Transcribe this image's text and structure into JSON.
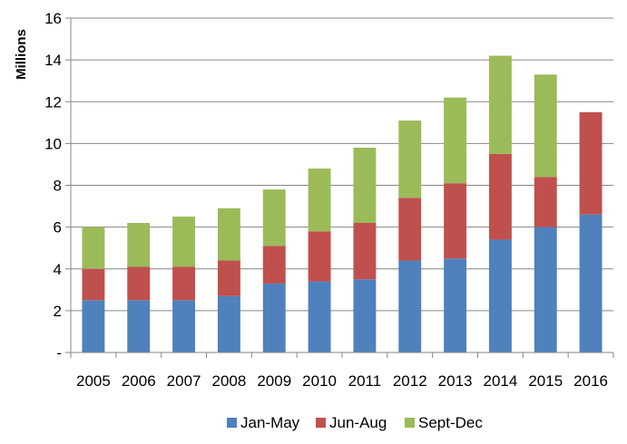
{
  "chart_data": {
    "type": "bar",
    "stacked": true,
    "categories": [
      "2005",
      "2006",
      "2007",
      "2008",
      "2009",
      "2010",
      "2011",
      "2012",
      "2013",
      "2014",
      "2015",
      "2016"
    ],
    "series": [
      {
        "name": "Jan-May",
        "color": "#4F81BD",
        "values": [
          2.5,
          2.5,
          2.5,
          2.7,
          3.3,
          3.4,
          3.5,
          4.4,
          4.5,
          5.4,
          6.0,
          6.6
        ]
      },
      {
        "name": "Jun-Aug",
        "color": "#C0504D",
        "values": [
          1.5,
          1.6,
          1.6,
          1.7,
          1.8,
          2.4,
          2.7,
          3.0,
          3.6,
          4.1,
          2.4,
          4.9
        ]
      },
      {
        "name": "Sept-Dec",
        "color": "#9BBB59",
        "values": [
          2.0,
          2.1,
          2.4,
          2.5,
          2.7,
          3.0,
          3.6,
          3.7,
          4.1,
          4.7,
          4.9,
          0
        ]
      }
    ],
    "ylabel": "Millions",
    "ylim": [
      0,
      16
    ],
    "yticks": [
      {
        "value": 0,
        "label": "-"
      },
      {
        "value": 2,
        "label": "2"
      },
      {
        "value": 4,
        "label": "4"
      },
      {
        "value": 6,
        "label": "6"
      },
      {
        "value": 8,
        "label": "8"
      },
      {
        "value": 10,
        "label": "10"
      },
      {
        "value": 12,
        "label": "12"
      },
      {
        "value": 14,
        "label": "14"
      },
      {
        "value": 16,
        "label": "16"
      }
    ],
    "grid": true,
    "legend_position": "bottom"
  }
}
